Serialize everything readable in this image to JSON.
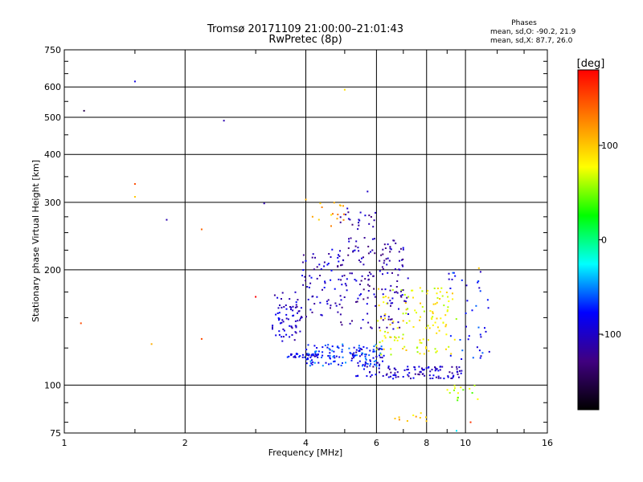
{
  "chart_data": {
    "type": "scatter",
    "title": "Tromsø 20171109 21:00:00–21:01:43",
    "subtitle": "RwPretec (8p)",
    "xlabel": "Frequency [MHz]",
    "ylabel": "Stationary phase Virtual Height [km]",
    "x_scale": "log",
    "y_scale": "log",
    "xlim": [
      1,
      16
    ],
    "ylim": [
      75,
      750
    ],
    "x_ticks": [
      1,
      2,
      4,
      6,
      8,
      10,
      16
    ],
    "x_tick_labels": [
      "1",
      "2",
      "4",
      "6",
      "8",
      "10",
      "16"
    ],
    "y_ticks": [
      75,
      100,
      200,
      300,
      400,
      500,
      600,
      750
    ],
    "y_tick_labels": [
      "75",
      "100",
      "200",
      "300",
      "400",
      "500",
      "600",
      "750"
    ],
    "grid": true,
    "phase_stats": {
      "title": "Phases",
      "line1": "mean, sd,O: -90.2, 21.9",
      "line2": "mean, sd,X: 87.7, 26.0"
    },
    "colorbar": {
      "label": "[deg]",
      "range": [
        -180,
        180
      ],
      "ticks": [
        100,
        0,
        -100
      ],
      "tick_labels": [
        "100",
        "0",
        "-100"
      ],
      "colors": [
        "#ff0000",
        "#ff8000",
        "#ffff00",
        "#00ff00",
        "#00ffff",
        "#0000ff",
        "#400080",
        "#000000"
      ]
    },
    "clusters": [
      {
        "f": [
          3.3,
          3.9
        ],
        "h": [
          130,
          175
        ],
        "phase": -100,
        "n": 70
      },
      {
        "f": [
          3.6,
          4.3
        ],
        "h": [
          118,
          121
        ],
        "phase": -90,
        "n": 40
      },
      {
        "f": [
          4.0,
          6.2
        ],
        "h": [
          112,
          128
        ],
        "phase": -70,
        "n": 120
      },
      {
        "f": [
          3.9,
          4.9
        ],
        "h": [
          150,
          230
        ],
        "phase": -100,
        "n": 60
      },
      {
        "f": [
          4.8,
          6.0
        ],
        "h": [
          140,
          290
        ],
        "phase": -110,
        "n": 110
      },
      {
        "f": [
          5.2,
          6.3
        ],
        "h": [
          105,
          125
        ],
        "phase": -100,
        "n": 40
      },
      {
        "f": [
          6.1,
          7.2
        ],
        "h": [
          140,
          240
        ],
        "phase": -110,
        "n": 80
      },
      {
        "f": [
          6.3,
          9.8
        ],
        "h": [
          104,
          112
        ],
        "phase": -100,
        "n": 90
      },
      {
        "f": [
          6.0,
          9.5
        ],
        "h": [
          120,
          180
        ],
        "phase": 80,
        "n": 130
      },
      {
        "f": [
          9.0,
          11.5
        ],
        "h": [
          115,
          200
        ],
        "phase": -80,
        "n": 40
      },
      {
        "f": [
          9.0,
          10.8
        ],
        "h": [
          90,
          100
        ],
        "phase": 60,
        "n": 15
      },
      {
        "f": [
          6.5,
          8.0
        ],
        "h": [
          80,
          85
        ],
        "phase": 100,
        "n": 10
      },
      {
        "f": [
          4.1,
          5.0
        ],
        "h": [
          260,
          300
        ],
        "phase": 110,
        "n": 15
      }
    ],
    "points": [
      {
        "f": 1.12,
        "h": 520,
        "phase": -150
      },
      {
        "f": 1.5,
        "h": 620,
        "phase": -90
      },
      {
        "f": 2.5,
        "h": 490,
        "phase": -110
      },
      {
        "f": 1.5,
        "h": 335,
        "phase": 150
      },
      {
        "f": 1.5,
        "h": 310,
        "phase": 100
      },
      {
        "f": 1.8,
        "h": 270,
        "phase": -110
      },
      {
        "f": 2.2,
        "h": 255,
        "phase": 140
      },
      {
        "f": 1.1,
        "h": 145,
        "phase": 150
      },
      {
        "f": 1.65,
        "h": 128,
        "phase": 110
      },
      {
        "f": 2.2,
        "h": 132,
        "phase": 150
      },
      {
        "f": 3.0,
        "h": 170,
        "phase": 180
      },
      {
        "f": 3.15,
        "h": 298,
        "phase": -110
      },
      {
        "f": 4.0,
        "h": 305,
        "phase": 110
      },
      {
        "f": 5.0,
        "h": 590,
        "phase": 90
      },
      {
        "f": 5.7,
        "h": 320,
        "phase": -100
      },
      {
        "f": 10.8,
        "h": 202,
        "phase": 100
      },
      {
        "f": 9.5,
        "h": 76,
        "phase": -30
      },
      {
        "f": 10.3,
        "h": 80,
        "phase": 160
      }
    ]
  }
}
